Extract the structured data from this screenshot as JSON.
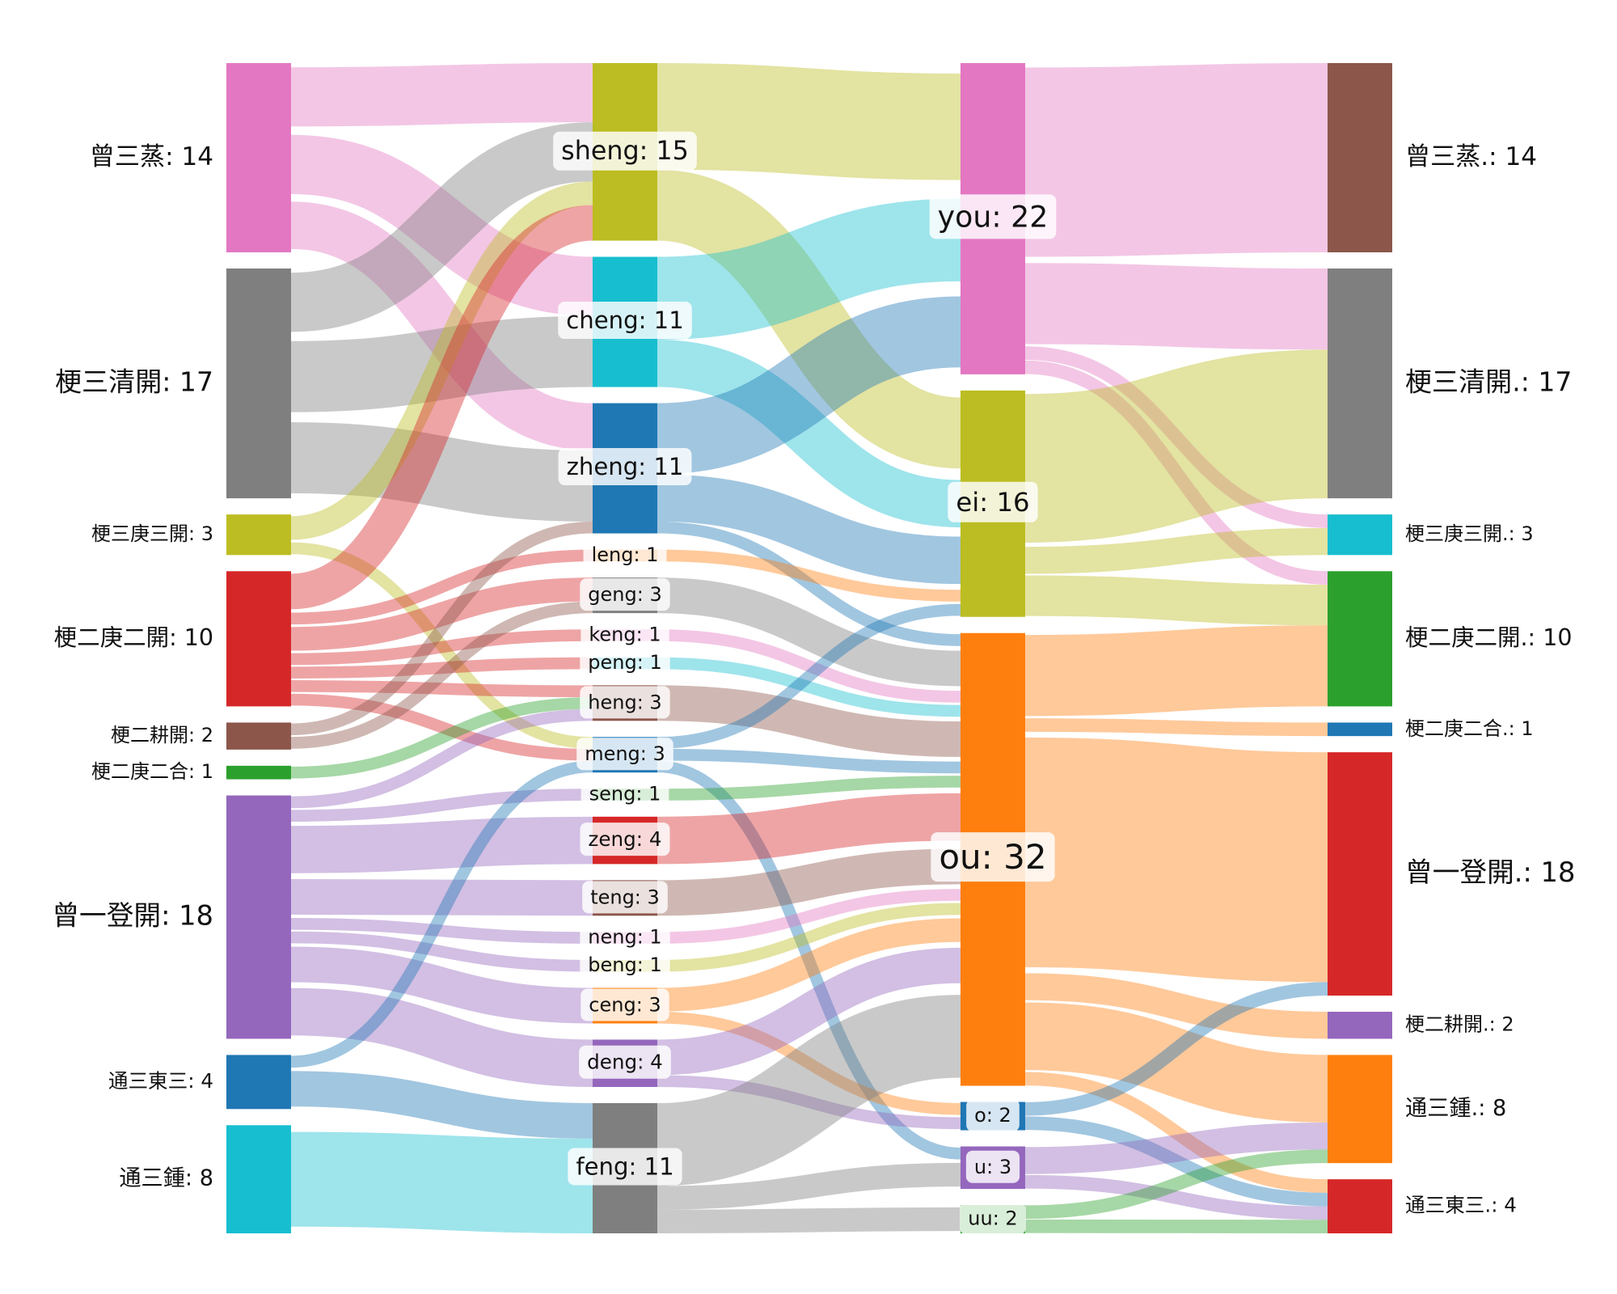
{
  "chart_data": {
    "type": "sankey",
    "columns": [
      [
        "曾三蒸",
        "梗三清開",
        "梗三庚三開",
        "梗二庚二開",
        "梗二耕開",
        "梗二庚二合",
        "曾一登開",
        "通三東三",
        "通三鍾"
      ],
      [
        "sheng",
        "cheng",
        "zheng",
        "leng",
        "geng",
        "keng",
        "peng",
        "heng",
        "meng",
        "seng",
        "zeng",
        "teng",
        "neng",
        "beng",
        "ceng",
        "deng",
        "feng"
      ],
      [
        "you",
        "ei",
        "ou",
        "o",
        "u",
        "uu"
      ],
      [
        "曾三蒸.",
        "梗三清開.",
        "梗三庚三開.",
        "梗二庚二開.",
        "梗二庚二合.",
        "曾一登開.",
        "梗二耕開.",
        "通三鍾.",
        "通三東三."
      ]
    ],
    "nodes": [
      {
        "name": "曾三蒸",
        "value": 14,
        "label": "曾三蒸: 14",
        "color": "#e377c2"
      },
      {
        "name": "梗三清開",
        "value": 17,
        "label": "梗三清開: 17",
        "color": "#7f7f7f"
      },
      {
        "name": "梗三庚三開",
        "value": 3,
        "label": "梗三庚三開: 3",
        "color": "#bcbd22"
      },
      {
        "name": "梗二庚二開",
        "value": 10,
        "label": "梗二庚二開: 10",
        "color": "#d62728"
      },
      {
        "name": "梗二耕開",
        "value": 2,
        "label": "梗二耕開: 2",
        "color": "#8c564b"
      },
      {
        "name": "梗二庚二合",
        "value": 1,
        "label": "梗二庚二合: 1",
        "color": "#2ca02c"
      },
      {
        "name": "曾一登開",
        "value": 18,
        "label": "曾一登開: 18",
        "color": "#9467bd"
      },
      {
        "name": "通三東三",
        "value": 4,
        "label": "通三東三: 4",
        "color": "#1f77b4"
      },
      {
        "name": "通三鍾",
        "value": 8,
        "label": "通三鍾: 8",
        "color": "#17becf"
      },
      {
        "name": "sheng",
        "value": 15,
        "label": "sheng: 15",
        "color": "#bcbd22"
      },
      {
        "name": "cheng",
        "value": 11,
        "label": "cheng: 11",
        "color": "#17becf"
      },
      {
        "name": "zheng",
        "value": 11,
        "label": "zheng: 11",
        "color": "#1f77b4"
      },
      {
        "name": "leng",
        "value": 1,
        "label": "leng: 1",
        "color": "#ff7f0e"
      },
      {
        "name": "geng",
        "value": 3,
        "label": "geng: 3",
        "color": "#7f7f7f"
      },
      {
        "name": "keng",
        "value": 1,
        "label": "keng: 1",
        "color": "#e377c2"
      },
      {
        "name": "peng",
        "value": 1,
        "label": "peng: 1",
        "color": "#17becf"
      },
      {
        "name": "heng",
        "value": 3,
        "label": "heng: 3",
        "color": "#8c564b"
      },
      {
        "name": "meng",
        "value": 3,
        "label": "meng: 3",
        "color": "#1f77b4"
      },
      {
        "name": "seng",
        "value": 1,
        "label": "seng: 1",
        "color": "#2ca02c"
      },
      {
        "name": "zeng",
        "value": 4,
        "label": "zeng: 4",
        "color": "#d62728"
      },
      {
        "name": "teng",
        "value": 3,
        "label": "teng: 3",
        "color": "#8c564b"
      },
      {
        "name": "neng",
        "value": 1,
        "label": "neng: 1",
        "color": "#e377c2"
      },
      {
        "name": "beng",
        "value": 1,
        "label": "beng: 1",
        "color": "#bcbd22"
      },
      {
        "name": "ceng",
        "value": 3,
        "label": "ceng: 3",
        "color": "#ff7f0e"
      },
      {
        "name": "deng",
        "value": 4,
        "label": "deng: 4",
        "color": "#9467bd"
      },
      {
        "name": "feng",
        "value": 11,
        "label": "feng: 11",
        "color": "#7f7f7f"
      },
      {
        "name": "you",
        "value": 22,
        "label": "you: 22",
        "color": "#e377c2"
      },
      {
        "name": "ei",
        "value": 16,
        "label": "ei: 16",
        "color": "#bcbd22"
      },
      {
        "name": "ou",
        "value": 32,
        "label": "ou: 32",
        "color": "#ff7f0e"
      },
      {
        "name": "o",
        "value": 2,
        "label": "o: 2",
        "color": "#1f77b4"
      },
      {
        "name": "u",
        "value": 3,
        "label": "u: 3",
        "color": "#9467bd"
      },
      {
        "name": "uu",
        "value": 2,
        "label": "uu: 2",
        "color": "#2ca02c"
      },
      {
        "name": "曾三蒸.",
        "value": 14,
        "label": "曾三蒸.: 14",
        "color": "#8c564b"
      },
      {
        "name": "梗三清開.",
        "value": 17,
        "label": "梗三清開.: 17",
        "color": "#7f7f7f"
      },
      {
        "name": "梗三庚三開.",
        "value": 3,
        "label": "梗三庚三開.: 3",
        "color": "#17becf"
      },
      {
        "name": "梗二庚二開.",
        "value": 10,
        "label": "梗二庚二開.: 10",
        "color": "#2ca02c"
      },
      {
        "name": "梗二庚二合.",
        "value": 1,
        "label": "梗二庚二合.: 1",
        "color": "#1f77b4"
      },
      {
        "name": "曾一登開.",
        "value": 18,
        "label": "曾一登開.: 18",
        "color": "#d62728"
      },
      {
        "name": "梗二耕開.",
        "value": 2,
        "label": "梗二耕開.: 2",
        "color": "#9467bd"
      },
      {
        "name": "通三鍾.",
        "value": 8,
        "label": "通三鍾.: 8",
        "color": "#ff7f0e"
      },
      {
        "name": "通三東三.",
        "value": 4,
        "label": "通三東三.: 4",
        "color": "#d62728"
      }
    ],
    "links": [
      {
        "source": "曾三蒸",
        "target": "sheng",
        "value": 5
      },
      {
        "source": "曾三蒸",
        "target": "cheng",
        "value": 5
      },
      {
        "source": "曾三蒸",
        "target": "zheng",
        "value": 4
      },
      {
        "source": "梗三清開",
        "target": "sheng",
        "value": 5
      },
      {
        "source": "梗三清開",
        "target": "cheng",
        "value": 6
      },
      {
        "source": "梗三清開",
        "target": "zheng",
        "value": 6
      },
      {
        "source": "梗三庚三開",
        "target": "sheng",
        "value": 2
      },
      {
        "source": "梗三庚三開",
        "target": "meng",
        "value": 1
      },
      {
        "source": "梗二庚二開",
        "target": "sheng",
        "value": 3
      },
      {
        "source": "梗二庚二開",
        "target": "leng",
        "value": 1
      },
      {
        "source": "梗二庚二開",
        "target": "geng",
        "value": 2
      },
      {
        "source": "梗二庚二開",
        "target": "keng",
        "value": 1
      },
      {
        "source": "梗二庚二開",
        "target": "peng",
        "value": 1
      },
      {
        "source": "梗二庚二開",
        "target": "heng",
        "value": 1
      },
      {
        "source": "梗二庚二開",
        "target": "meng",
        "value": 1
      },
      {
        "source": "梗二耕開",
        "target": "zheng",
        "value": 1
      },
      {
        "source": "梗二耕開",
        "target": "geng",
        "value": 1
      },
      {
        "source": "梗二庚二合",
        "target": "heng",
        "value": 1
      },
      {
        "source": "曾一登開",
        "target": "heng",
        "value": 1
      },
      {
        "source": "曾一登開",
        "target": "seng",
        "value": 1
      },
      {
        "source": "曾一登開",
        "target": "zeng",
        "value": 4
      },
      {
        "source": "曾一登開",
        "target": "teng",
        "value": 3
      },
      {
        "source": "曾一登開",
        "target": "neng",
        "value": 1
      },
      {
        "source": "曾一登開",
        "target": "beng",
        "value": 1
      },
      {
        "source": "曾一登開",
        "target": "ceng",
        "value": 3
      },
      {
        "source": "曾一登開",
        "target": "deng",
        "value": 4
      },
      {
        "source": "通三東三",
        "target": "meng",
        "value": 1
      },
      {
        "source": "通三東三",
        "target": "feng",
        "value": 3
      },
      {
        "source": "通三鍾",
        "target": "feng",
        "value": 8
      },
      {
        "source": "sheng",
        "target": "you",
        "value": 9
      },
      {
        "source": "sheng",
        "target": "ei",
        "value": 6
      },
      {
        "source": "cheng",
        "target": "you",
        "value": 7
      },
      {
        "source": "cheng",
        "target": "ei",
        "value": 4
      },
      {
        "source": "zheng",
        "target": "you",
        "value": 6
      },
      {
        "source": "zheng",
        "target": "ei",
        "value": 4
      },
      {
        "source": "zheng",
        "target": "ou",
        "value": 1
      },
      {
        "source": "leng",
        "target": "ei",
        "value": 1
      },
      {
        "source": "geng",
        "target": "ou",
        "value": 3
      },
      {
        "source": "keng",
        "target": "ou",
        "value": 1
      },
      {
        "source": "peng",
        "target": "ou",
        "value": 1
      },
      {
        "source": "heng",
        "target": "ou",
        "value": 3
      },
      {
        "source": "meng",
        "target": "ei",
        "value": 1
      },
      {
        "source": "meng",
        "target": "ou",
        "value": 1
      },
      {
        "source": "meng",
        "target": "u",
        "value": 1
      },
      {
        "source": "seng",
        "target": "ou",
        "value": 1
      },
      {
        "source": "zeng",
        "target": "ou",
        "value": 4
      },
      {
        "source": "teng",
        "target": "ou",
        "value": 3
      },
      {
        "source": "neng",
        "target": "ou",
        "value": 1
      },
      {
        "source": "beng",
        "target": "ou",
        "value": 1
      },
      {
        "source": "ceng",
        "target": "ou",
        "value": 2
      },
      {
        "source": "ceng",
        "target": "o",
        "value": 1
      },
      {
        "source": "deng",
        "target": "ou",
        "value": 3
      },
      {
        "source": "deng",
        "target": "o",
        "value": 1
      },
      {
        "source": "feng",
        "target": "ou",
        "value": 7
      },
      {
        "source": "feng",
        "target": "u",
        "value": 2
      },
      {
        "source": "feng",
        "target": "uu",
        "value": 2
      },
      {
        "source": "you",
        "target": "曾三蒸.",
        "value": 14
      },
      {
        "source": "you",
        "target": "梗三清開.",
        "value": 6
      },
      {
        "source": "you",
        "target": "梗三庚三開.",
        "value": 1
      },
      {
        "source": "you",
        "target": "梗二庚二開.",
        "value": 1
      },
      {
        "source": "ei",
        "target": "梗三清開.",
        "value": 11
      },
      {
        "source": "ei",
        "target": "梗三庚三開.",
        "value": 2
      },
      {
        "source": "ei",
        "target": "梗二庚二開.",
        "value": 3
      },
      {
        "source": "ou",
        "target": "梗二庚二開.",
        "value": 6
      },
      {
        "source": "ou",
        "target": "梗二庚二合.",
        "value": 1
      },
      {
        "source": "ou",
        "target": "曾一登開.",
        "value": 17
      },
      {
        "source": "ou",
        "target": "梗二耕開.",
        "value": 2
      },
      {
        "source": "ou",
        "target": "通三鍾.",
        "value": 5
      },
      {
        "source": "ou",
        "target": "通三東三.",
        "value": 1
      },
      {
        "source": "o",
        "target": "曾一登開.",
        "value": 1
      },
      {
        "source": "o",
        "target": "通三東三.",
        "value": 1
      },
      {
        "source": "u",
        "target": "通三鍾.",
        "value": 2
      },
      {
        "source": "u",
        "target": "通三東三.",
        "value": 1
      },
      {
        "source": "uu",
        "target": "通三鍾.",
        "value": 1
      },
      {
        "source": "uu",
        "target": "通三東三.",
        "value": 1
      }
    ]
  }
}
